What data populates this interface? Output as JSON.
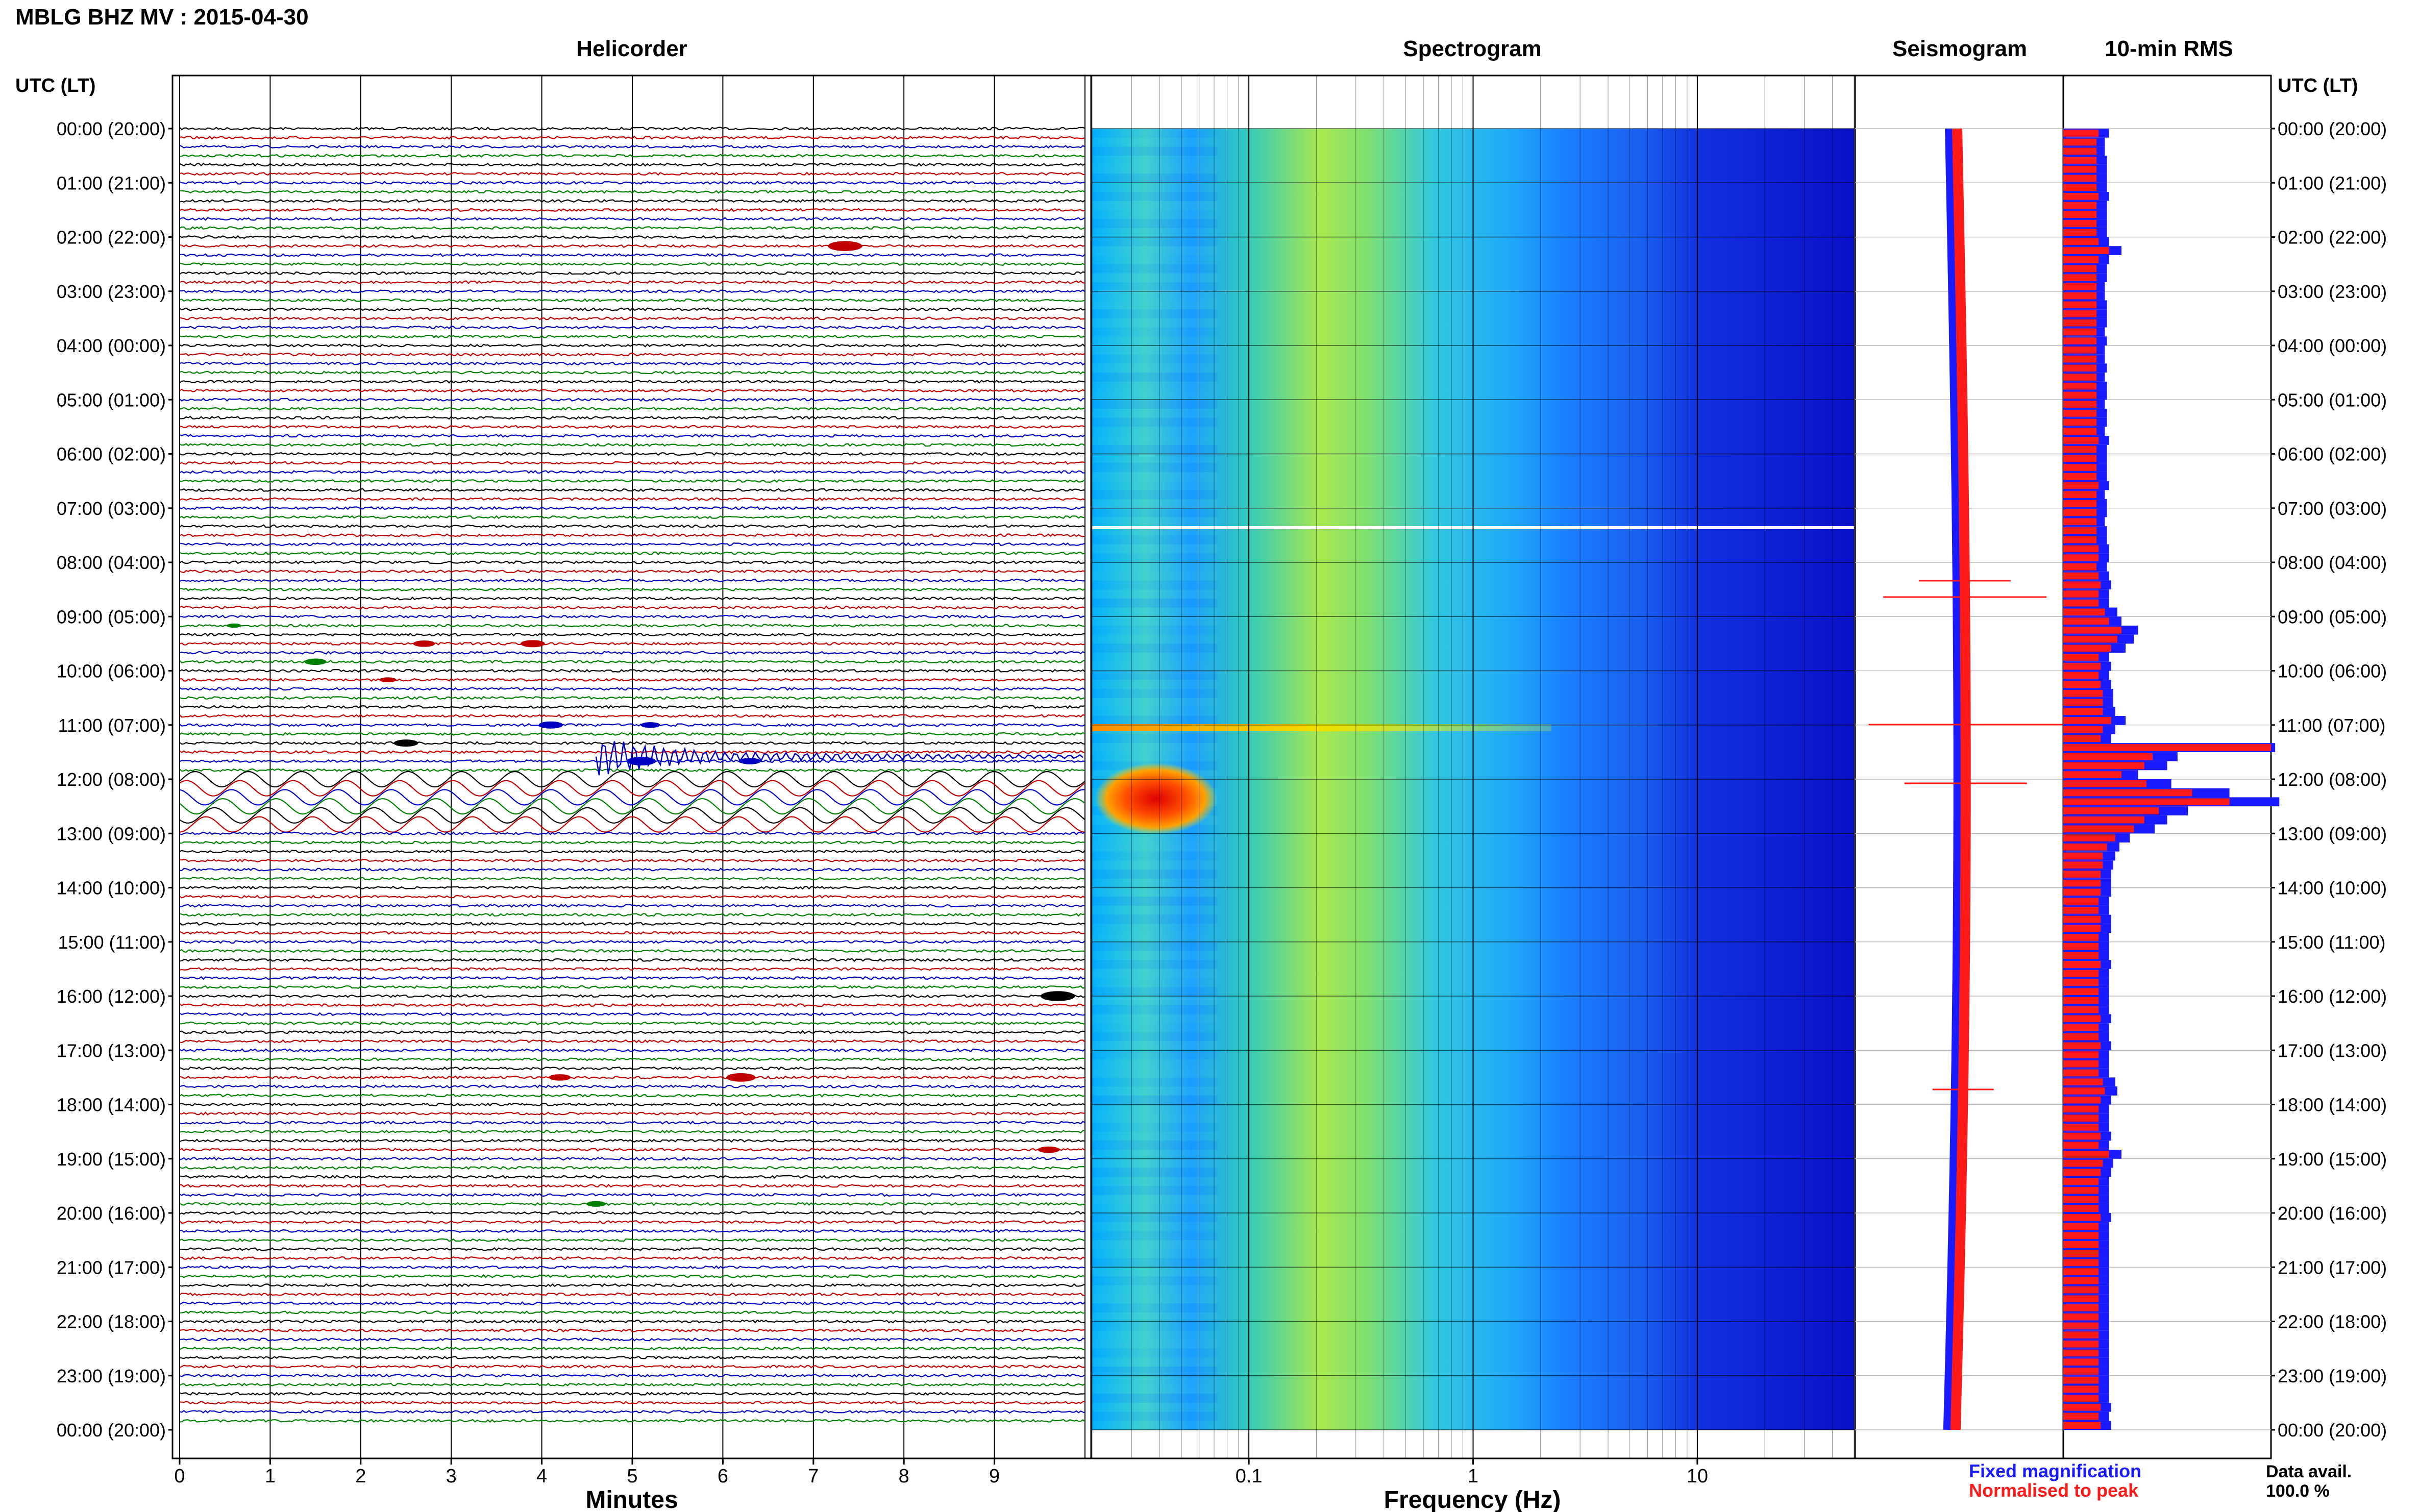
{
  "header": {
    "title": "MBLG BHZ MV : 2015-04-30",
    "utc_label_left": "UTC (LT)",
    "utc_label_right": "UTC (LT)"
  },
  "panels": {
    "helicorder": "Helicorder",
    "spectrogram": "Spectrogram",
    "seismogram": "Seismogram",
    "rms": "10-min RMS"
  },
  "axes": {
    "minutes_label": "Minutes",
    "minutes_ticks": [
      "0",
      "1",
      "2",
      "3",
      "4",
      "5",
      "6",
      "7",
      "8",
      "9"
    ],
    "frequency_label": "Frequency (Hz)",
    "frequency_ticks": [
      "0.1",
      "1",
      "10"
    ]
  },
  "legend": {
    "fixed": "Fixed magnification",
    "normalised": "Normalised to peak",
    "fixed_color": "#1a1aff",
    "normalised_color": "#ff1a1a"
  },
  "data_avail": {
    "label": "Data avail.",
    "value": "100.0 %"
  },
  "colors": {
    "trace_cycle": [
      "#000000",
      "#c00000",
      "#0000c0",
      "#008000"
    ],
    "rms_fixed": "#1a1aff",
    "rms_norm": "#ff1a1a"
  },
  "chart_data": {
    "type": "heatmap",
    "time_labels": [
      "00:00 (20:00)",
      "01:00 (21:00)",
      "02:00 (22:00)",
      "03:00 (23:00)",
      "04:00 (00:00)",
      "05:00 (01:00)",
      "06:00 (02:00)",
      "07:00 (03:00)",
      "08:00 (04:00)",
      "09:00 (05:00)",
      "10:00 (06:00)",
      "11:00 (07:00)",
      "12:00 (08:00)",
      "13:00 (09:00)",
      "14:00 (10:00)",
      "15:00 (11:00)",
      "16:00 (12:00)",
      "17:00 (13:00)",
      "18:00 (14:00)",
      "19:00 (15:00)",
      "20:00 (16:00)",
      "21:00 (17:00)",
      "22:00 (18:00)",
      "23:00 (19:00)",
      "00:00 (20:00)"
    ],
    "helicorder": {
      "xlabel": "Minutes",
      "xlim": [
        0,
        10
      ],
      "rows": 144,
      "minutes_per_row": 10
    },
    "spectrogram": {
      "xlabel": "Frequency (Hz)",
      "xlim": [
        0.02,
        50
      ],
      "xscale": "log",
      "xticks": [
        0.1,
        1,
        10
      ]
    },
    "rms": {
      "xlim": [
        0,
        1
      ],
      "fixed": [
        0.22,
        0.2,
        0.2,
        0.21,
        0.21,
        0.21,
        0.21,
        0.22,
        0.21,
        0.21,
        0.21,
        0.21,
        0.22,
        0.28,
        0.22,
        0.21,
        0.21,
        0.2,
        0.2,
        0.21,
        0.21,
        0.21,
        0.2,
        0.21,
        0.2,
        0.2,
        0.21,
        0.2,
        0.21,
        0.21,
        0.2,
        0.21,
        0.21,
        0.2,
        0.22,
        0.21,
        0.21,
        0.21,
        0.21,
        0.22,
        0.2,
        0.21,
        0.21,
        0.2,
        0.21,
        0.21,
        0.22,
        0.22,
        0.21,
        0.22,
        0.23,
        0.22,
        0.22,
        0.26,
        0.28,
        0.36,
        0.34,
        0.3,
        0.22,
        0.23,
        0.22,
        0.23,
        0.24,
        0.24,
        0.25,
        0.3,
        0.25,
        0.23,
        1.02,
        0.55,
        0.5,
        0.36,
        0.52,
        0.8,
        1.04,
        0.6,
        0.5,
        0.44,
        0.32,
        0.27,
        0.25,
        0.24,
        0.23,
        0.23,
        0.23,
        0.22,
        0.22,
        0.23,
        0.23,
        0.22,
        0.22,
        0.22,
        0.23,
        0.22,
        0.22,
        0.22,
        0.22,
        0.22,
        0.23,
        0.22,
        0.22,
        0.23,
        0.22,
        0.22,
        0.22,
        0.25,
        0.26,
        0.23,
        0.22,
        0.22,
        0.22,
        0.23,
        0.22,
        0.28,
        0.24,
        0.23,
        0.22,
        0.22,
        0.22,
        0.22,
        0.23,
        0.22,
        0.22,
        0.22,
        0.22,
        0.22,
        0.22,
        0.22,
        0.22,
        0.22,
        0.22,
        0.22,
        0.22,
        0.22,
        0.22,
        0.22,
        0.22,
        0.22,
        0.22,
        0.22,
        0.22,
        0.23,
        0.22,
        0.23
      ],
      "normalised": [
        0.17,
        0.16,
        0.16,
        0.16,
        0.16,
        0.16,
        0.16,
        0.17,
        0.16,
        0.16,
        0.16,
        0.16,
        0.17,
        0.22,
        0.17,
        0.16,
        0.16,
        0.16,
        0.16,
        0.16,
        0.16,
        0.16,
        0.16,
        0.16,
        0.16,
        0.16,
        0.16,
        0.16,
        0.16,
        0.16,
        0.16,
        0.16,
        0.16,
        0.16,
        0.17,
        0.16,
        0.16,
        0.16,
        0.16,
        0.17,
        0.16,
        0.16,
        0.16,
        0.16,
        0.16,
        0.16,
        0.17,
        0.17,
        0.16,
        0.17,
        0.18,
        0.17,
        0.17,
        0.2,
        0.22,
        0.28,
        0.26,
        0.23,
        0.17,
        0.18,
        0.17,
        0.18,
        0.19,
        0.19,
        0.19,
        0.23,
        0.19,
        0.18,
        1.0,
        0.43,
        0.39,
        0.28,
        0.4,
        0.62,
        0.8,
        0.46,
        0.39,
        0.34,
        0.25,
        0.21,
        0.19,
        0.19,
        0.18,
        0.18,
        0.18,
        0.17,
        0.17,
        0.18,
        0.18,
        0.17,
        0.17,
        0.17,
        0.18,
        0.17,
        0.17,
        0.17,
        0.17,
        0.17,
        0.18,
        0.17,
        0.17,
        0.18,
        0.17,
        0.17,
        0.17,
        0.19,
        0.2,
        0.18,
        0.17,
        0.17,
        0.17,
        0.18,
        0.17,
        0.22,
        0.19,
        0.18,
        0.17,
        0.17,
        0.17,
        0.17,
        0.18,
        0.17,
        0.17,
        0.17,
        0.17,
        0.17,
        0.17,
        0.17,
        0.17,
        0.17,
        0.17,
        0.17,
        0.17,
        0.17,
        0.17,
        0.17,
        0.17,
        0.17,
        0.17,
        0.17,
        0.17,
        0.18,
        0.17,
        0.18
      ]
    }
  }
}
